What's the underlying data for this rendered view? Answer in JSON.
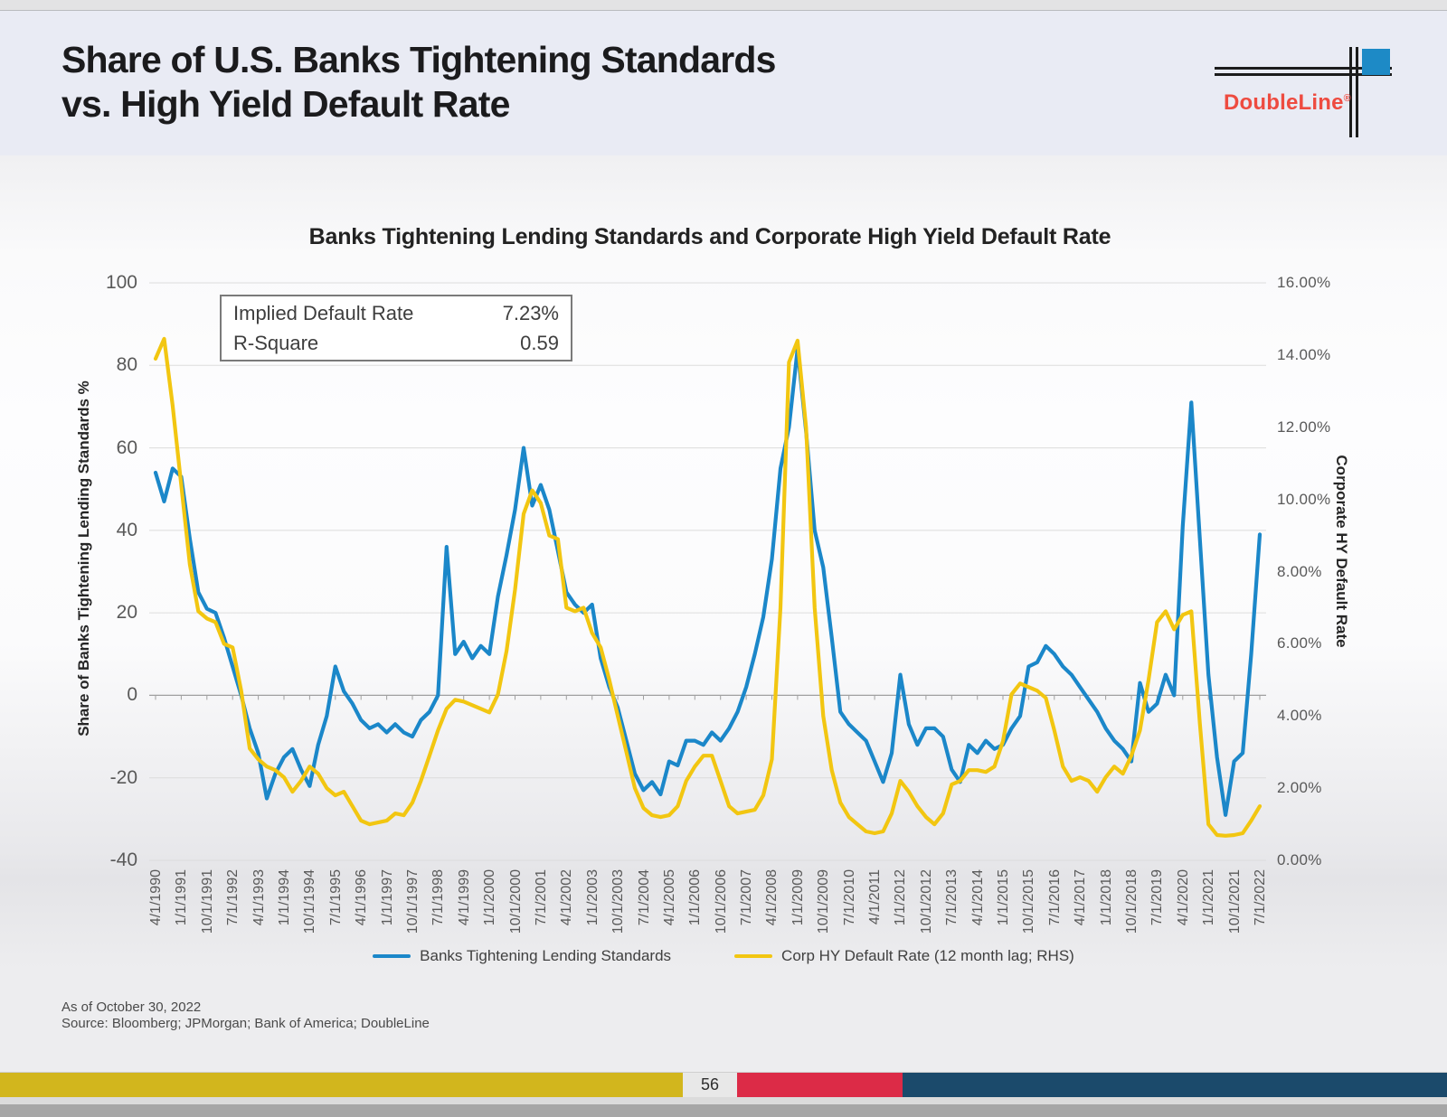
{
  "slide": {
    "header": {
      "title_line1": "Share of U.S. Banks Tightening Standards",
      "title_line2": "vs. High Yield Default Rate",
      "logo_text": "DoubleLine",
      "logo_reg": "®"
    },
    "footnotes": {
      "as_of": "As of October 30, 2022",
      "source": "Source: Bloomberg; JPMorgan; Bank of America; DoubleLine"
    },
    "page_number": "56"
  },
  "colors": {
    "series_blue": "#1B87C9",
    "series_yellow": "#F2C611",
    "logo_red": "#EE4B40",
    "logo_blue_square": "#1D8AC6",
    "footer_yellow": "#D2B61D",
    "footer_red": "#DC2B47",
    "footer_navy": "#1B4A6B",
    "gridline": "#DCDCDC",
    "axis_line": "#A0A0A0",
    "tick_text": "#595959"
  },
  "chart_data": {
    "type": "line",
    "title": "Banks Tightening Lending Standards and Corporate High Yield Default Rate",
    "left_axis": {
      "title": "Share of Banks Tightening Lending Standards %",
      "ticks": [
        100,
        80,
        60,
        40,
        20,
        0,
        -20,
        -40
      ],
      "range": [
        -40,
        100
      ],
      "grid": true
    },
    "right_axis": {
      "title": "Corporate HY Default Rate",
      "tick_labels": [
        "16.00%",
        "14.00%",
        "12.00%",
        "10.00%",
        "8.00%",
        "6.00%",
        "4.00%",
        "2.00%",
        "0.00%"
      ],
      "ticks": [
        16,
        14,
        12,
        10,
        8,
        6,
        4,
        2,
        0
      ],
      "range": [
        0,
        16
      ]
    },
    "stats_box": {
      "rows": [
        {
          "label": "Implied Default Rate",
          "value": "7.23%"
        },
        {
          "label": "R-Square",
          "value": "0.59"
        }
      ]
    },
    "legend_position": "bottom",
    "legend": [
      {
        "label": "Banks Tightening Lending Standards",
        "color": "#1B87C9"
      },
      {
        "label": "Corp HY Default Rate (12 month lag; RHS)",
        "color": "#F2C611"
      }
    ],
    "x_frequency": "quarterly",
    "x_start": "4/1/1990",
    "x_end": "7/1/2022",
    "x_tick_labels": [
      "4/1/1990",
      "1/1/1991",
      "10/1/1991",
      "7/1/1992",
      "4/1/1993",
      "1/1/1994",
      "10/1/1994",
      "7/1/1995",
      "4/1/1996",
      "1/1/1997",
      "10/1/1997",
      "7/1/1998",
      "4/1/1999",
      "1/1/2000",
      "10/1/2000",
      "7/1/2001",
      "4/1/2002",
      "1/1/2003",
      "10/1/2003",
      "7/1/2004",
      "4/1/2005",
      "1/1/2006",
      "10/1/2006",
      "7/1/2007",
      "4/1/2008",
      "1/1/2009",
      "10/1/2009",
      "7/1/2010",
      "4/1/2011",
      "1/1/2012",
      "10/1/2012",
      "7/1/2013",
      "4/1/2014",
      "1/1/2015",
      "10/1/2015",
      "7/1/2016",
      "4/1/2017",
      "1/1/2018",
      "10/1/2018",
      "7/1/2019",
      "4/1/2020",
      "1/1/2021",
      "10/1/2021",
      "7/1/2022"
    ],
    "series": [
      {
        "name": "Banks Tightening Lending Standards",
        "axis": "left",
        "unit": "%net tightening",
        "color": "#1B87C9",
        "values": [
          54,
          47,
          55,
          53,
          38,
          25,
          21,
          20,
          14,
          7,
          0,
          -8,
          -14,
          -25,
          -19,
          -15,
          -13,
          -18,
          -22,
          -12,
          -5,
          7,
          1,
          -2,
          -6,
          -8,
          -7,
          -9,
          -7,
          -9,
          -10,
          -6,
          -4,
          0,
          36,
          10,
          13,
          9,
          12,
          10,
          24,
          34,
          45,
          60,
          46,
          51,
          45,
          35,
          25,
          22,
          20,
          22,
          9,
          2,
          -3,
          -11,
          -19,
          -23,
          -21,
          -24,
          -16,
          -17,
          -11,
          -11,
          -12,
          -9,
          -11,
          -8,
          -4,
          2,
          10,
          19,
          33,
          55,
          65,
          84,
          64,
          40,
          31,
          14,
          -4,
          -7,
          -9,
          -11,
          -16,
          -21,
          -14,
          5,
          -7,
          -12,
          -8,
          -8,
          -10,
          -18,
          -21,
          -12,
          -14,
          -11,
          -13,
          -12,
          -8,
          -5,
          7,
          8,
          12,
          10,
          7,
          5,
          2,
          -1,
          -4,
          -8,
          -11,
          -13,
          -16,
          3,
          -4,
          -2,
          5,
          0,
          41,
          71,
          38,
          5,
          -15,
          -29,
          -16,
          -14,
          10,
          39
        ]
      },
      {
        "name": "Corp HY Default Rate (12 month lag; RHS)",
        "axis": "right",
        "unit": "%",
        "color": "#F2C611",
        "values": [
          13.9,
          14.45,
          12.6,
          10.4,
          8.2,
          6.9,
          6.7,
          6.6,
          6.0,
          5.9,
          4.7,
          3.1,
          2.8,
          2.6,
          2.5,
          2.3,
          1.9,
          2.2,
          2.6,
          2.4,
          2.0,
          1.8,
          1.9,
          1.5,
          1.1,
          1.0,
          1.05,
          1.1,
          1.3,
          1.25,
          1.6,
          2.2,
          2.9,
          3.6,
          4.2,
          4.45,
          4.4,
          4.3,
          4.2,
          4.1,
          4.6,
          5.8,
          7.5,
          9.6,
          10.25,
          9.9,
          9.0,
          8.9,
          7.0,
          6.9,
          7.0,
          6.3,
          5.9,
          5.0,
          4.0,
          3.0,
          2.0,
          1.45,
          1.25,
          1.2,
          1.25,
          1.5,
          2.2,
          2.6,
          2.9,
          2.9,
          2.2,
          1.5,
          1.3,
          1.35,
          1.4,
          1.8,
          2.8,
          7.0,
          13.8,
          14.4,
          12.0,
          7.0,
          4.0,
          2.5,
          1.6,
          1.2,
          1.0,
          0.8,
          0.75,
          0.8,
          1.3,
          2.2,
          1.9,
          1.5,
          1.2,
          1.0,
          1.3,
          2.1,
          2.2,
          2.5,
          2.5,
          2.45,
          2.6,
          3.3,
          4.6,
          4.9,
          4.8,
          4.7,
          4.5,
          3.6,
          2.6,
          2.2,
          2.3,
          2.2,
          1.9,
          2.3,
          2.6,
          2.4,
          2.9,
          3.6,
          5.0,
          6.6,
          6.9,
          6.4,
          6.8,
          6.9,
          3.8,
          1.0,
          0.7,
          0.68,
          0.7,
          0.75,
          1.1,
          1.5
        ]
      }
    ]
  }
}
